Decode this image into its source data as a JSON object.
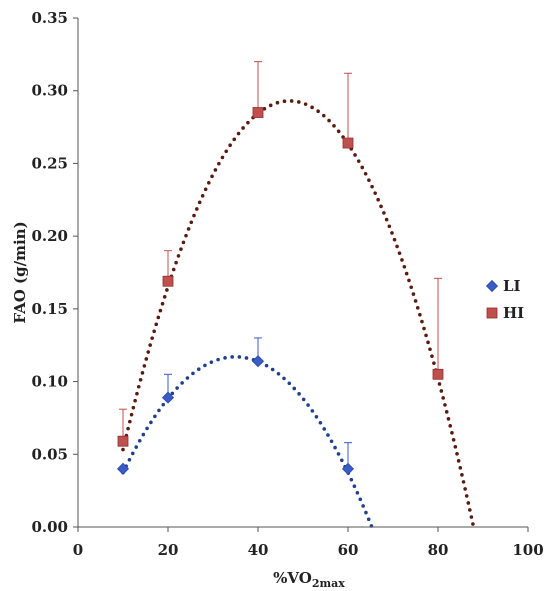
{
  "chart_data": {
    "type": "scatter",
    "xlabel": {
      "main": "%VO",
      "subscript": "2max"
    },
    "ylabel": "FAO (g/min)",
    "xlim": [
      0,
      100
    ],
    "ylim": [
      0,
      0.35
    ],
    "x_ticks": [
      "0",
      "20",
      "40",
      "60",
      "80",
      "100"
    ],
    "y_ticks": [
      "0.00",
      "0.05",
      "0.10",
      "0.15",
      "0.20",
      "0.25",
      "0.30",
      "0.35"
    ],
    "x_tick_values": [
      0,
      20,
      40,
      60,
      80,
      100
    ],
    "y_tick_values": [
      0,
      0.05,
      0.1,
      0.15,
      0.2,
      0.25,
      0.3,
      0.35
    ],
    "grid": false,
    "legend_position": "right",
    "series": [
      {
        "name": "LI",
        "marker": "diamond",
        "color": "#3a5cc7",
        "trend_color": "#1f3f8f",
        "x": [
          10,
          20,
          40,
          60
        ],
        "y": [
          0.04,
          0.089,
          0.114,
          0.04
        ],
        "error_plus": [
          0.0,
          0.016,
          0.016,
          0.018
        ],
        "trendline": {
          "type": "polynomial-2",
          "x_range": [
            10,
            65.3
          ],
          "vertex_x": 35,
          "vertex_y": 0.117,
          "root_x": 65.3
        }
      },
      {
        "name": "HI",
        "marker": "square",
        "color": "#c0504d",
        "trend_color": "#5a1a10",
        "x": [
          10,
          20,
          40,
          60,
          80
        ],
        "y": [
          0.059,
          0.169,
          0.285,
          0.264,
          0.105
        ],
        "error_plus": [
          0.022,
          0.021,
          0.035,
          0.048,
          0.066
        ],
        "trendline": {
          "type": "polynomial-2",
          "x_range": [
            10,
            87.9
          ],
          "vertex_x": 47,
          "vertex_y": 0.293,
          "root_x": 87.9
        }
      }
    ]
  }
}
